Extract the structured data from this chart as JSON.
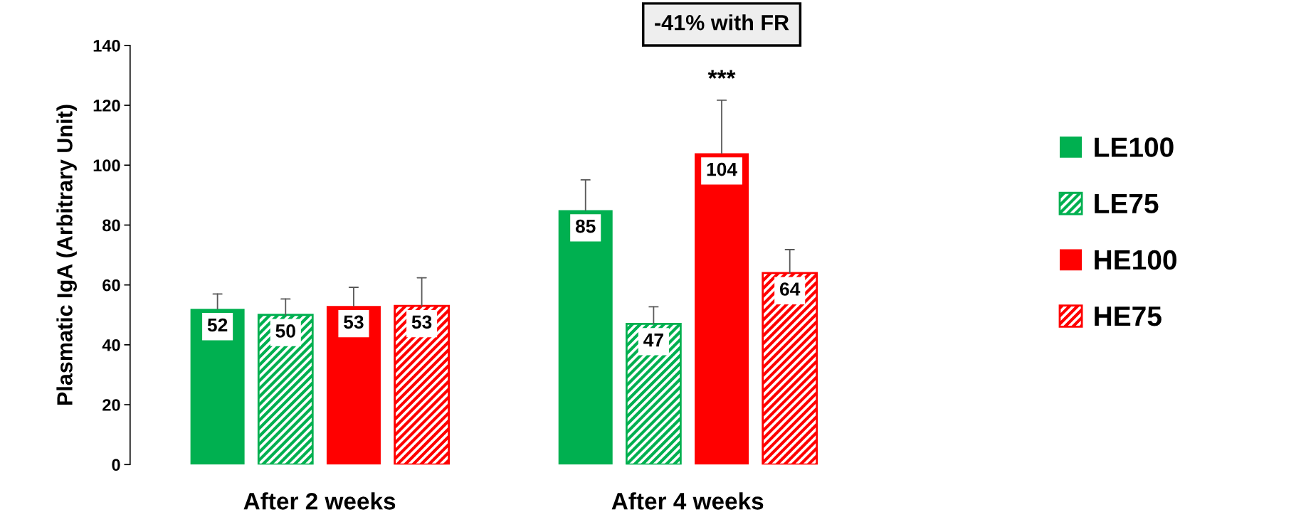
{
  "chart_data": {
    "type": "bar",
    "ylabel": "Plasmatic IgA (Arbitrary Unit)",
    "categories": [
      "After 2 weeks",
      "After 4 weeks"
    ],
    "series": [
      {
        "name": "LE100",
        "color": "#00b050",
        "values": [
          52,
          85
        ],
        "errors": [
          [
            52,
            57.0
          ],
          [
            85,
            95.1
          ]
        ]
      },
      {
        "name": "LE75",
        "color": "#00b050",
        "values": [
          50,
          47
        ],
        "errors": [
          [
            50,
            55.3
          ],
          [
            47,
            52.7
          ]
        ]
      },
      {
        "name": "HE100",
        "color": "#ff0000",
        "values": [
          53,
          104
        ],
        "errors": [
          [
            53,
            59.2
          ],
          [
            104,
            121.7
          ]
        ]
      },
      {
        "name": "HE75",
        "color": "#ff0000",
        "values": [
          53,
          64
        ],
        "errors": [
          [
            53,
            62.4
          ],
          [
            64,
            71.8
          ]
        ]
      }
    ],
    "data_labels": true,
    "annotations": [
      "-41% with FR",
      "***"
    ],
    "ylim": [
      0,
      140
    ],
    "yticks": [
      0,
      20,
      40,
      60,
      80,
      100,
      120,
      140
    ],
    "grid": false,
    "legend": "right"
  }
}
